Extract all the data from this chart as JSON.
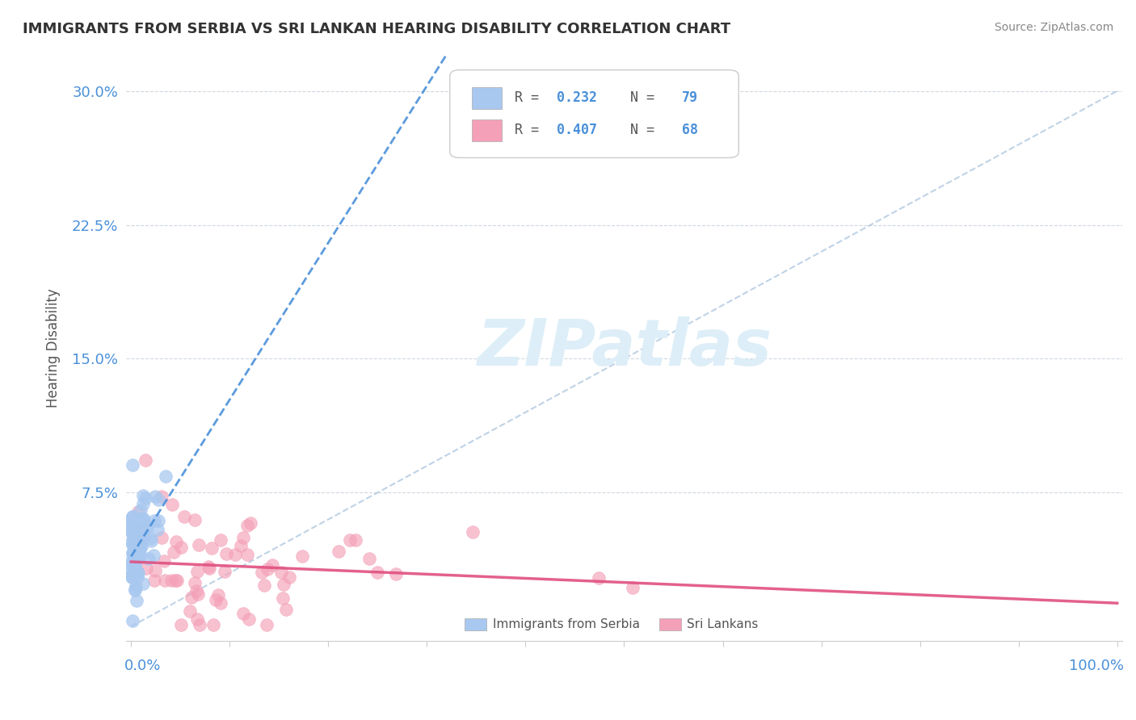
{
  "title": "IMMIGRANTS FROM SERBIA VS SRI LANKAN HEARING DISABILITY CORRELATION CHART",
  "source": "Source: ZipAtlas.com",
  "ylabel": "Hearing Disability",
  "legend_serbia": "Immigrants from Serbia",
  "legend_srilanka": "Sri Lankans",
  "serbia_color": "#a8c8f0",
  "srilanka_color": "#f4a0b8",
  "serbia_line_color": "#4a90d9",
  "srilanka_line_color": "#e05080",
  "diag_line_color": "#b0c8e0",
  "watermark_color": "#ddeef8",
  "background_color": "#ffffff",
  "title_color": "#333333",
  "source_color": "#888888",
  "ylabel_color": "#555555",
  "tick_label_color": "#4a90d9",
  "legend_text_color": "#555555",
  "legend_rval_color": "#4a90d9",
  "serbia_R": 0.232,
  "serbia_N": 79,
  "srilanka_R": 0.407,
  "srilanka_N": 68,
  "ytick_vals": [
    0.0,
    0.075,
    0.15,
    0.225,
    0.3
  ],
  "ytick_labels": [
    "",
    "7.5%",
    "15.0%",
    "22.5%",
    "30.0%"
  ],
  "xmin": -0.005,
  "xmax": 1.005,
  "ymin": -0.008,
  "ymax": 0.32
}
